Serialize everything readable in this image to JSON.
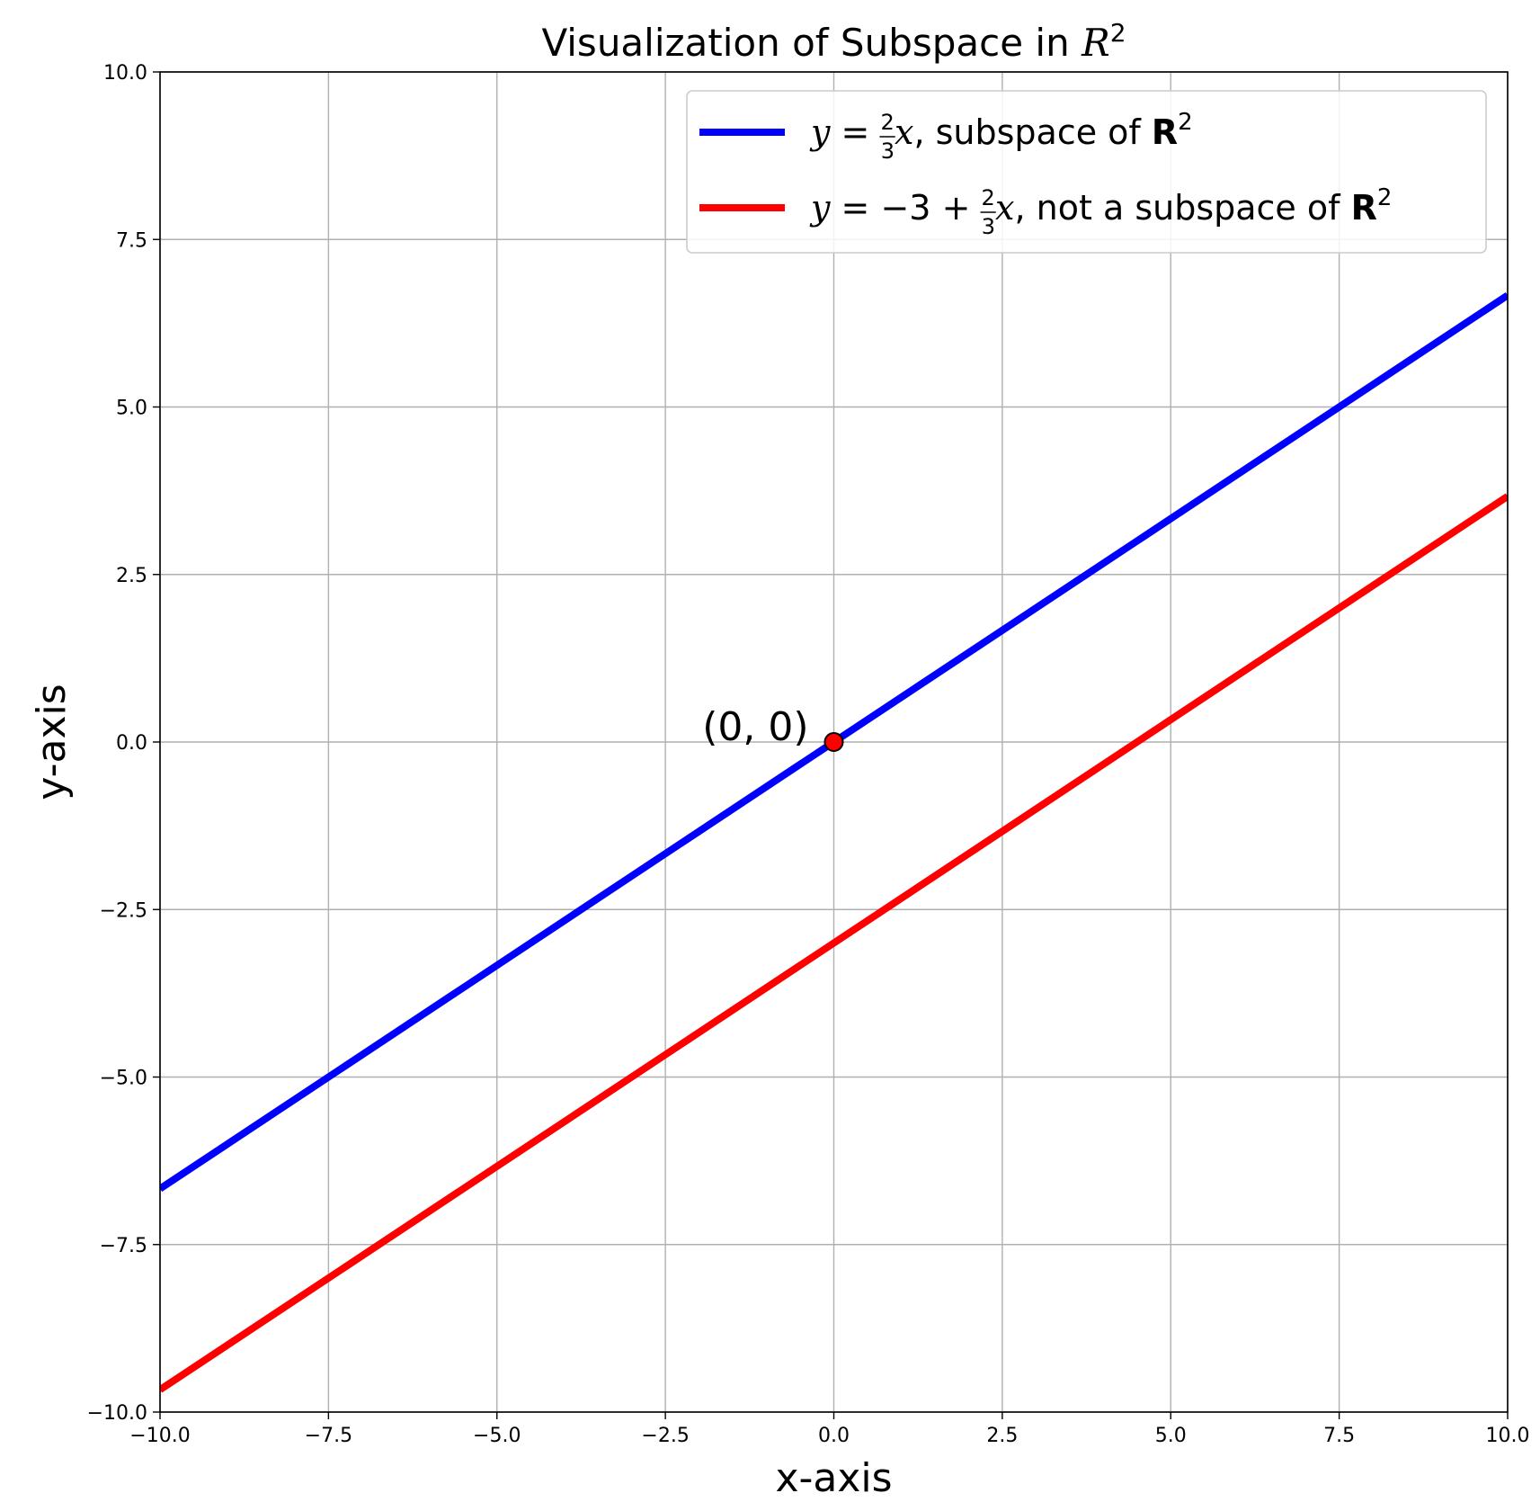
{
  "chart_data": {
    "type": "line",
    "title": {
      "prefix": "Visualization of Subspace in ",
      "symbol": "R",
      "superscript": "2"
    },
    "xlabel": "x-axis",
    "ylabel": "y-axis",
    "xlim": [
      -10,
      10
    ],
    "ylim": [
      -10,
      10
    ],
    "grid": true,
    "legend_position": "top-right",
    "x_ticks": [
      "−10.0",
      "−7.5",
      "−5.0",
      "−2.5",
      "0.0",
      "2.5",
      "5.0",
      "7.5",
      "10.0"
    ],
    "y_ticks": [
      "−10.0",
      "−7.5",
      "−5.0",
      "−2.5",
      "0.0",
      "2.5",
      "5.0",
      "7.5",
      "10.0"
    ],
    "x_tick_values": [
      -10,
      -7.5,
      -5,
      -2.5,
      0,
      2.5,
      5,
      7.5,
      10
    ],
    "y_tick_values": [
      -10,
      -7.5,
      -5,
      -2.5,
      0,
      2.5,
      5,
      7.5,
      10
    ],
    "series": [
      {
        "color": "#0000ff",
        "slope": 0.6667,
        "intercept": 0,
        "x": [
          -10,
          10
        ],
        "y": [
          -6.667,
          6.667
        ],
        "legend": {
          "lhs": "y",
          "eq": " = ",
          "const": "",
          "frac_num": "2",
          "frac_den": "3",
          "var": "x",
          "text": ", subspace of ",
          "bold": "R",
          "sup": "2"
        }
      },
      {
        "color": "#ff0000",
        "slope": 0.6667,
        "intercept": -3,
        "x": [
          -10,
          10
        ],
        "y": [
          -9.667,
          3.667
        ],
        "legend": {
          "lhs": "y",
          "eq": " = ",
          "const": "−3 + ",
          "frac_num": "2",
          "frac_den": "3",
          "var": "x",
          "text": ", not a subspace of ",
          "bold": "R",
          "sup": "2"
        }
      }
    ],
    "points": [
      {
        "x": 0,
        "y": 0,
        "label": "(0, 0)",
        "color": "#ff0000",
        "edge_color": "#000000"
      }
    ]
  }
}
